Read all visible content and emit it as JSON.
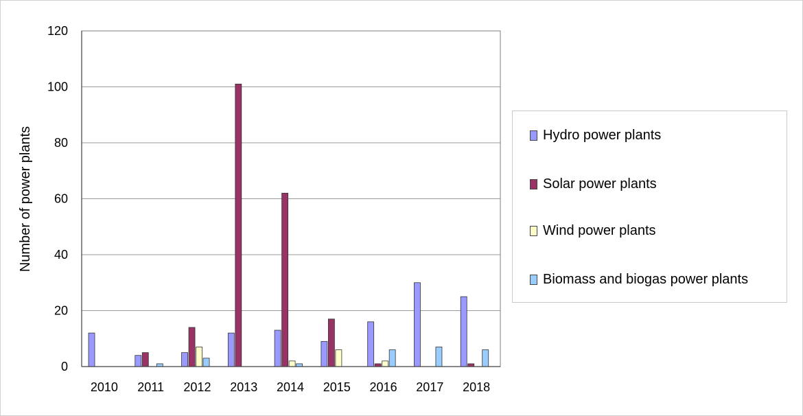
{
  "chart_data": {
    "type": "bar",
    "title": "",
    "xlabel": "",
    "ylabel": "Number of power plants",
    "ylim": [
      0,
      120
    ],
    "yticks": [
      0,
      20,
      40,
      60,
      80,
      100,
      120
    ],
    "grid": true,
    "legend_position": "right",
    "categories": [
      "2010",
      "2011",
      "2012",
      "2013",
      "2014",
      "2015",
      "2016",
      "2017",
      "2018"
    ],
    "series": [
      {
        "name": "Hydro power plants",
        "color": "#9999ff",
        "values": [
          12,
          4,
          5,
          12,
          13,
          9,
          16,
          30,
          25
        ]
      },
      {
        "name": "Solar power plants",
        "color": "#993366",
        "values": [
          0,
          5,
          14,
          101,
          62,
          17,
          1,
          0,
          1
        ]
      },
      {
        "name": "Wind power plants",
        "color": "#ffffcc",
        "values": [
          0,
          0,
          7,
          0,
          2,
          6,
          2,
          0,
          0
        ]
      },
      {
        "name": "Biomass and biogas power plants",
        "color": "#99ccff",
        "values": [
          0,
          1,
          3,
          0,
          1,
          0,
          6,
          7,
          6
        ]
      }
    ]
  }
}
